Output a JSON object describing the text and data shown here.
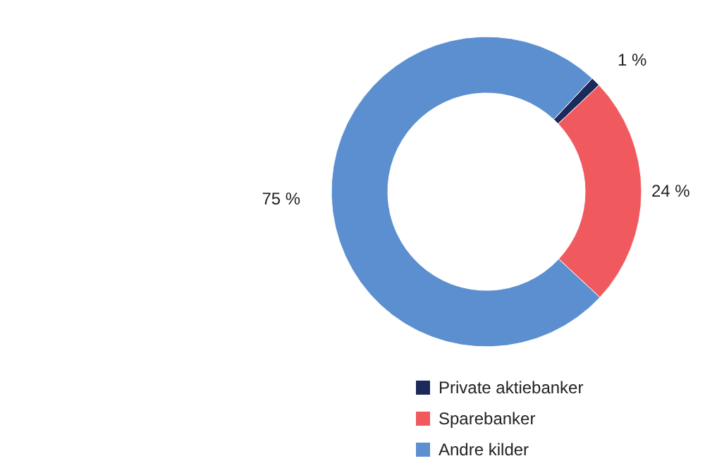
{
  "chart_data": {
    "type": "donut",
    "categories": [
      "Private aktiebanker",
      "Sparebanker",
      "Andre kilder"
    ],
    "values": [
      1,
      24,
      75
    ],
    "colors": [
      "#1b2a5a",
      "#f05a5f",
      "#5b8fd0"
    ],
    "value_labels": [
      "1 %",
      "24 %",
      "75 %"
    ],
    "legend": "bottom"
  }
}
